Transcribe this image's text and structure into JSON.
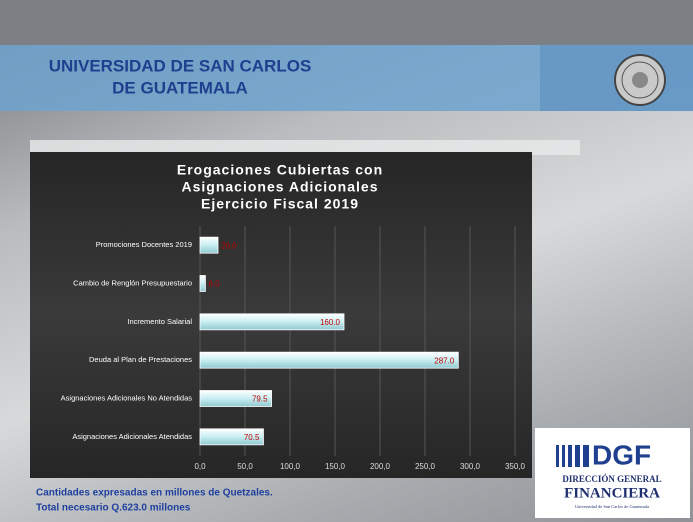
{
  "header": {
    "title_lines": [
      "UNIVERSIDAD DE SAN CARLOS",
      "DE GUATEMALA"
    ]
  },
  "chart_data": {
    "type": "hbar",
    "title": [
      "Erogaciones Cubiertas con",
      "Asignaciones Adicionales",
      "Ejercicio Fiscal 2019"
    ],
    "categories": [
      "Promociones Docentes 2019",
      "Cambio de Renglón Presupuestario",
      "Incremento Salarial",
      "Deuda al Plan de Prestaciones",
      "Asignaciones Adicionales No Atendidas",
      "Asignaciones Adicionales Atendidas"
    ],
    "values": [
      20,
      6,
      160,
      287,
      79.5,
      70.5
    ],
    "value_labels": [
      "20.0",
      "6.0",
      "160.0",
      "287.0",
      "79.5",
      "70.5"
    ],
    "color": "#c8eef2",
    "xlim": [
      0,
      350
    ],
    "xticks": [
      {
        "value": 0,
        "label": "0,0"
      },
      {
        "value": 50,
        "label": "50,0"
      },
      {
        "value": 100,
        "label": "100,0"
      },
      {
        "value": 150,
        "label": "150,0"
      },
      {
        "value": 200,
        "label": "200,0"
      },
      {
        "value": 250,
        "label": "250,0"
      },
      {
        "value": 300,
        "label": "300,0"
      },
      {
        "value": 350,
        "label": "350,0"
      }
    ],
    "grid": true
  },
  "footer": {
    "lines": [
      "Cantidades expresadas en millones  de Quetzales.",
      "Total necesario Q.623.0 millones"
    ]
  },
  "logo": {
    "acronym": "DGF",
    "line1": "DIRECCIÓN GENERAL",
    "line2": "FINANCIERA",
    "line3": "Universidad de San Carlos de Guatemala"
  }
}
